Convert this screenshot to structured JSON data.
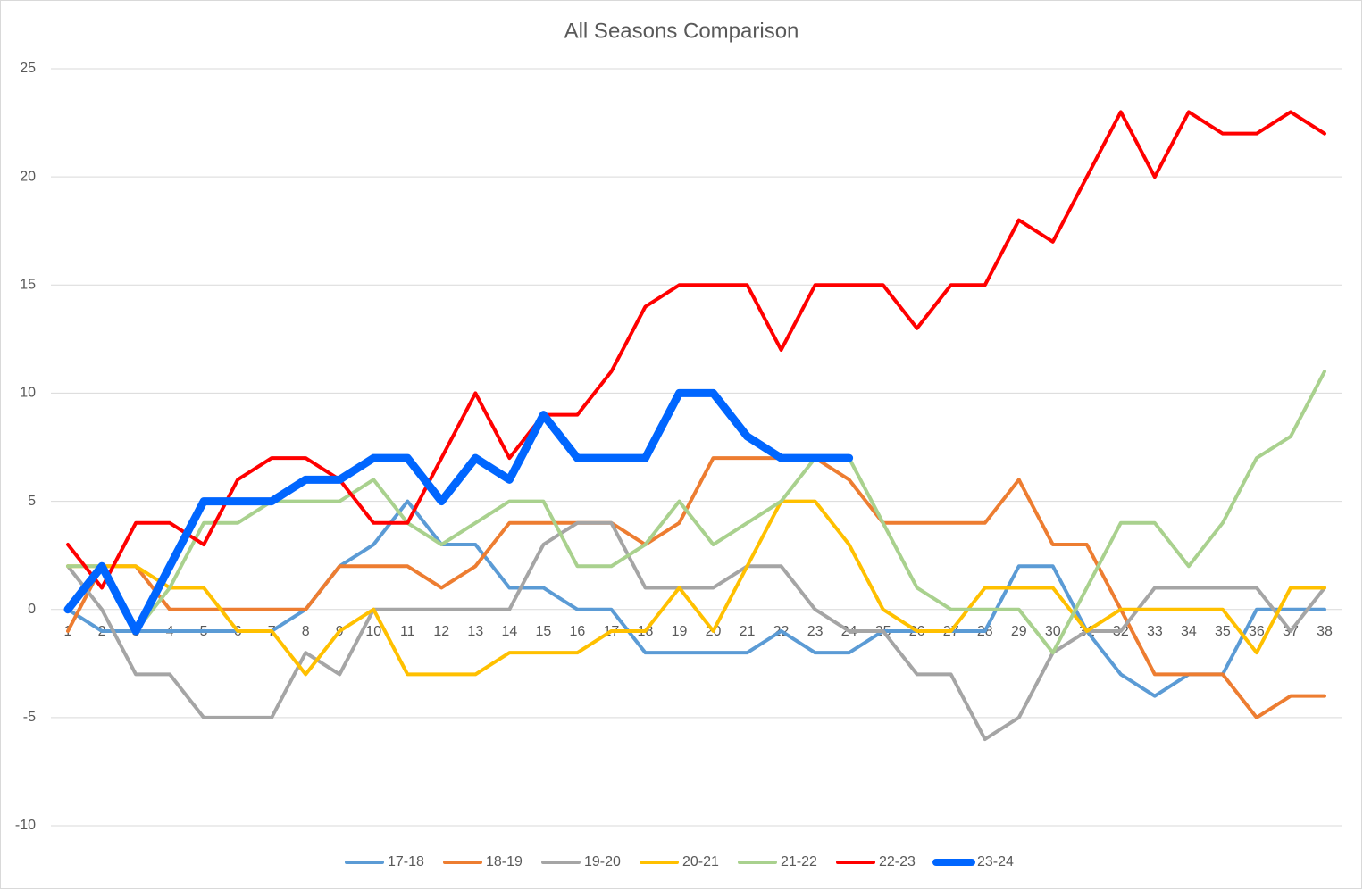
{
  "chart_data": {
    "type": "line",
    "title": "All Seasons Comparison",
    "categories": [
      1,
      2,
      3,
      4,
      5,
      6,
      7,
      8,
      9,
      10,
      11,
      12,
      13,
      14,
      15,
      16,
      17,
      18,
      19,
      20,
      21,
      22,
      23,
      24,
      25,
      26,
      27,
      28,
      29,
      30,
      31,
      32,
      33,
      34,
      35,
      36,
      37,
      38
    ],
    "ylim": [
      -10,
      25
    ],
    "yticks": [
      -10,
      -5,
      0,
      5,
      10,
      15,
      20,
      25
    ],
    "grid": true,
    "legend": "bottom",
    "series": [
      {
        "name": "17-18",
        "color": "#5b9bd5",
        "values": [
          0,
          -1,
          -1,
          -1,
          -1,
          -1,
          -1,
          0,
          2,
          3,
          5,
          3,
          3,
          1,
          1,
          0,
          0,
          -2,
          -2,
          -2,
          -2,
          -1,
          -2,
          -2,
          -1,
          -1,
          -1,
          -1,
          2,
          2,
          -1,
          -3,
          -4,
          -3,
          -3,
          0,
          0,
          0
        ]
      },
      {
        "name": "18-19",
        "color": "#ed7d31",
        "values": [
          -1,
          2,
          2,
          0,
          0,
          0,
          0,
          0,
          2,
          2,
          2,
          1,
          2,
          4,
          4,
          4,
          4,
          3,
          4,
          7,
          7,
          7,
          7,
          6,
          4,
          4,
          4,
          4,
          6,
          3,
          3,
          0,
          -3,
          -3,
          -3,
          -5,
          -4,
          -4
        ]
      },
      {
        "name": "19-20",
        "color": "#a5a5a5",
        "values": [
          2,
          0,
          -3,
          -3,
          -5,
          -5,
          -5,
          -2,
          -3,
          0,
          0,
          0,
          0,
          0,
          3,
          4,
          4,
          1,
          1,
          1,
          2,
          2,
          0,
          -1,
          -1,
          -3,
          -3,
          -6,
          -5,
          -2,
          -1,
          -1,
          1,
          1,
          1,
          1,
          -1,
          1
        ]
      },
      {
        "name": "20-21",
        "color": "#ffc000",
        "values": [
          2,
          2,
          2,
          1,
          1,
          -1,
          -1,
          -3,
          -1,
          0,
          -3,
          -3,
          -3,
          -2,
          -2,
          -2,
          -1,
          -1,
          1,
          -1,
          2,
          5,
          5,
          3,
          0,
          -1,
          -1,
          1,
          1,
          1,
          -1,
          0,
          0,
          0,
          0,
          -2,
          1,
          1
        ]
      },
      {
        "name": "21-22",
        "color": "#a9d18e",
        "values": [
          2,
          2,
          -1,
          1,
          4,
          4,
          5,
          5,
          5,
          6,
          4,
          3,
          4,
          5,
          5,
          2,
          2,
          3,
          5,
          3,
          4,
          5,
          7,
          7,
          4,
          1,
          0,
          0,
          0,
          -2,
          1,
          4,
          4,
          2,
          4,
          7,
          8,
          11
        ]
      },
      {
        "name": "22-23",
        "color": "#ff0000",
        "values": [
          3,
          1,
          4,
          4,
          3,
          6,
          7,
          7,
          6,
          4,
          4,
          7,
          10,
          7,
          9,
          9,
          11,
          14,
          15,
          15,
          15,
          12,
          15,
          15,
          15,
          13,
          15,
          15,
          18,
          17,
          20,
          23,
          20,
          23,
          22,
          22,
          23,
          22
        ]
      },
      {
        "name": "23-24",
        "color": "#0066ff",
        "values": [
          0,
          2,
          -1,
          2,
          5,
          5,
          5,
          6,
          6,
          7,
          7,
          5,
          7,
          6,
          9,
          7,
          7,
          7,
          10,
          10,
          8,
          7,
          7,
          7,
          null,
          null,
          null,
          null,
          null,
          null,
          null,
          null,
          null,
          null,
          null,
          null,
          null,
          null
        ]
      }
    ]
  }
}
